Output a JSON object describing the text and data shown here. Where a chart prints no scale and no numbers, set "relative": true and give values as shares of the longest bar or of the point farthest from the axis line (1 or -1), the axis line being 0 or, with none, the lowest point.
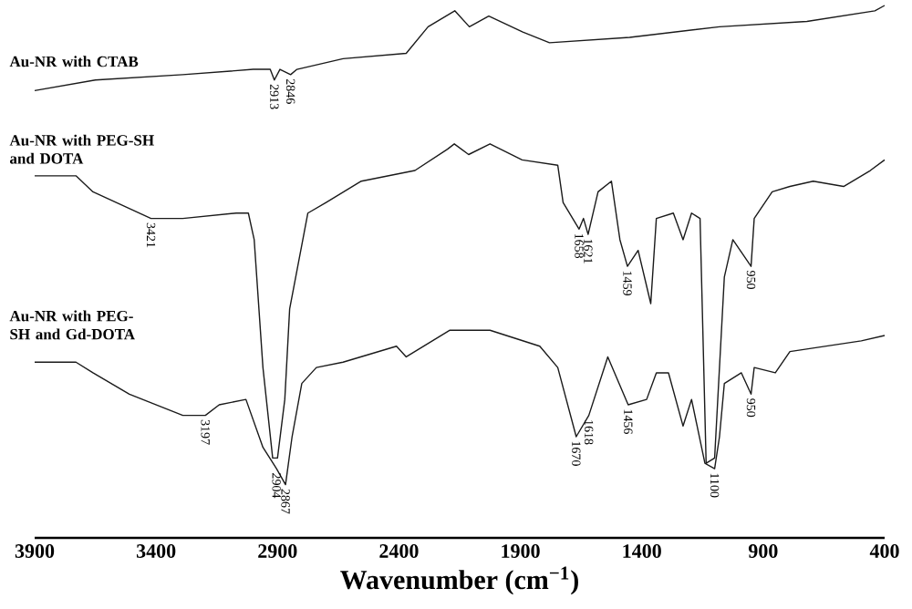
{
  "chart_data": {
    "type": "line",
    "relative": true,
    "xlabel": "Wavenumber (cm$^{−1}$)",
    "xlim": [
      3900,
      400
    ],
    "xticks": [
      3900,
      3400,
      2900,
      2400,
      1900,
      1400,
      900,
      400
    ],
    "legend": false,
    "grid": false,
    "marker": "none",
    "line_style": "solid",
    "series": [
      {
        "name": "Au-NR with CTAB",
        "color": "#1a1a1a",
        "x": [
          3900,
          3650,
          3290,
          3000,
          2930,
          2913,
          2890,
          2846,
          2820,
          2630,
          2370,
          2280,
          2170,
          2110,
          2030,
          1890,
          1780,
          1450,
          1080,
          720,
          440,
          400
        ],
        "values": [
          0.84,
          0.86,
          0.87,
          0.88,
          0.88,
          0.86,
          0.88,
          0.87,
          0.88,
          0.9,
          0.91,
          0.96,
          0.99,
          0.96,
          0.98,
          0.95,
          0.93,
          0.94,
          0.96,
          0.97,
          0.99,
          1.0
        ]
      },
      {
        "name": "Au-NR with PEG-SH and DOTA",
        "color": "#1a1a1a",
        "x": [
          3900,
          3730,
          3660,
          3421,
          3290,
          3070,
          3020,
          2996,
          2960,
          2920,
          2900,
          2870,
          2850,
          2775,
          2700,
          2555,
          2334,
          2200,
          2172,
          2113,
          2025,
          1893,
          1746,
          1724,
          1658,
          1640,
          1621,
          1580,
          1525,
          1490,
          1459,
          1415,
          1363,
          1340,
          1270,
          1230,
          1195,
          1160,
          1135,
          1100,
          1060,
          1025,
          950,
          937,
          863,
          790,
          694,
          569,
          459,
          400
        ],
        "values": [
          0.68,
          0.68,
          0.65,
          0.6,
          0.6,
          0.61,
          0.61,
          0.56,
          0.32,
          0.15,
          0.15,
          0.26,
          0.43,
          0.61,
          0.63,
          0.67,
          0.69,
          0.73,
          0.74,
          0.72,
          0.74,
          0.71,
          0.7,
          0.63,
          0.58,
          0.6,
          0.57,
          0.65,
          0.67,
          0.56,
          0.51,
          0.54,
          0.44,
          0.6,
          0.61,
          0.56,
          0.61,
          0.6,
          0.14,
          0.15,
          0.49,
          0.56,
          0.51,
          0.6,
          0.65,
          0.66,
          0.67,
          0.66,
          0.69,
          0.71
        ]
      },
      {
        "name": "Au-NR with PEG-SH and Gd-DOTA",
        "color": "#1a1a1a",
        "x": [
          3900,
          3730,
          3660,
          3510,
          3290,
          3197,
          3140,
          3030,
          2960,
          2904,
          2867,
          2840,
          2800,
          2740,
          2630,
          2410,
          2370,
          2190,
          2025,
          1820,
          1746,
          1670,
          1618,
          1540,
          1456,
          1380,
          1340,
          1290,
          1230,
          1195,
          1140,
          1100,
          1080,
          1060,
          990,
          950,
          937,
          850,
          790,
          643,
          496,
          400
        ],
        "values": [
          0.33,
          0.33,
          0.31,
          0.27,
          0.23,
          0.23,
          0.25,
          0.26,
          0.17,
          0.13,
          0.1,
          0.19,
          0.29,
          0.32,
          0.33,
          0.36,
          0.34,
          0.39,
          0.39,
          0.36,
          0.32,
          0.19,
          0.23,
          0.34,
          0.25,
          0.26,
          0.31,
          0.31,
          0.21,
          0.26,
          0.14,
          0.13,
          0.19,
          0.29,
          0.31,
          0.27,
          0.32,
          0.31,
          0.35,
          0.36,
          0.37,
          0.38
        ]
      }
    ],
    "annotations": [
      {
        "text": "2913",
        "x": 2913,
        "y": 0.86
      },
      {
        "text": "2846",
        "x": 2846,
        "y": 0.87
      },
      {
        "text": "3421",
        "x": 3421,
        "y": 0.6
      },
      {
        "text": "1658",
        "x": 1658,
        "y": 0.58
      },
      {
        "text": "1621",
        "x": 1621,
        "y": 0.57
      },
      {
        "text": "1459",
        "x": 1459,
        "y": 0.51
      },
      {
        "text": "950",
        "x": 950,
        "y": 0.51
      },
      {
        "text": "3197",
        "x": 3197,
        "y": 0.23
      },
      {
        "text": "2904",
        "x": 2904,
        "y": 0.13
      },
      {
        "text": "2867",
        "x": 2867,
        "y": 0.1
      },
      {
        "text": "1670",
        "x": 1670,
        "y": 0.19
      },
      {
        "text": "1618",
        "x": 1618,
        "y": 0.23
      },
      {
        "text": "1456",
        "x": 1456,
        "y": 0.25
      },
      {
        "text": "1100",
        "x": 1100,
        "y": 0.13
      },
      {
        "text": "950",
        "x": 950,
        "y": 0.27
      }
    ]
  }
}
